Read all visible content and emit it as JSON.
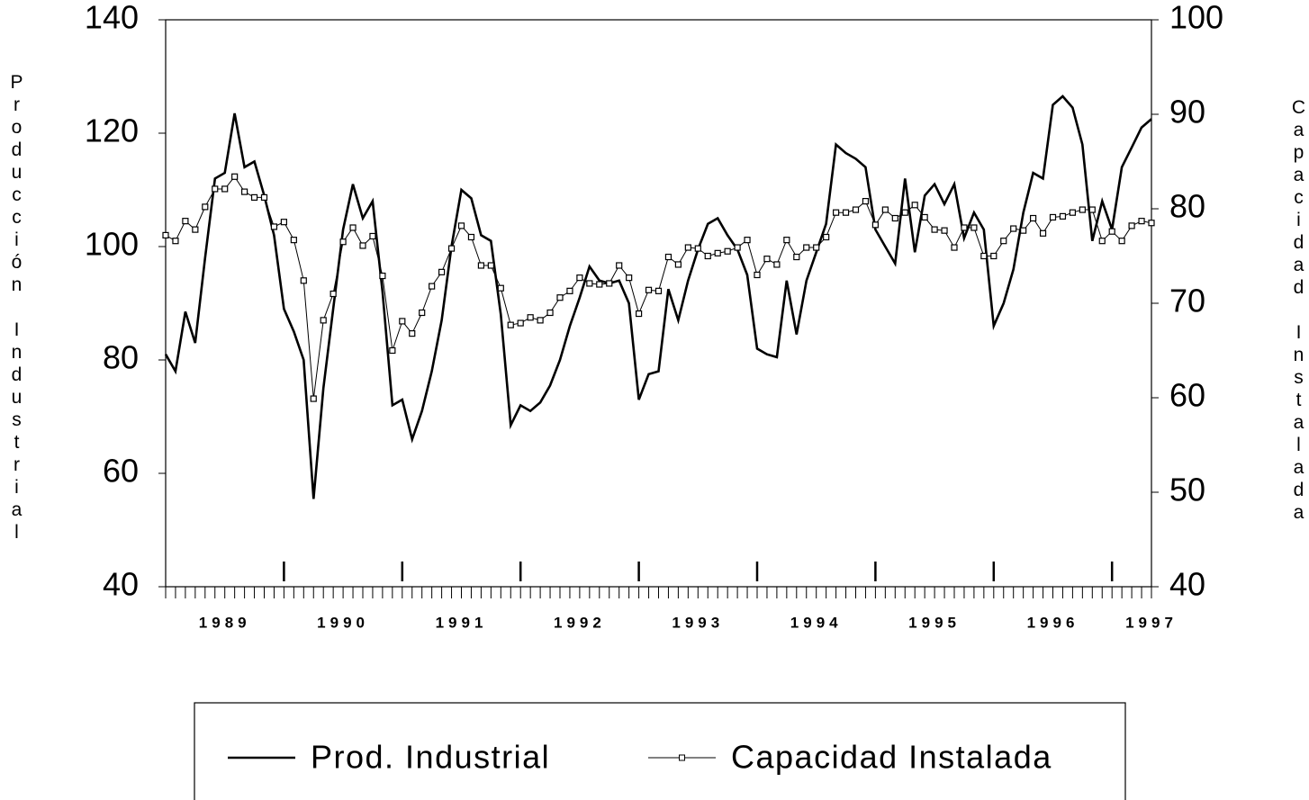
{
  "chart_data": {
    "type": "line",
    "categories": [
      null,
      null,
      null,
      null,
      null,
      null,
      "1989",
      null,
      null,
      null,
      null,
      null,
      null,
      null,
      null,
      null,
      null,
      null,
      "1990",
      null,
      null,
      null,
      null,
      null,
      null,
      null,
      null,
      null,
      null,
      null,
      "1991",
      null,
      null,
      null,
      null,
      null,
      null,
      null,
      null,
      null,
      null,
      null,
      "1992",
      null,
      null,
      null,
      null,
      null,
      null,
      null,
      null,
      null,
      null,
      null,
      "1993",
      null,
      null,
      null,
      null,
      null,
      null,
      null,
      null,
      null,
      null,
      null,
      "1994",
      null,
      null,
      null,
      null,
      null,
      null,
      null,
      null,
      null,
      null,
      null,
      "1995",
      null,
      null,
      null,
      null,
      null,
      null,
      null,
      null,
      null,
      null,
      null,
      "1996",
      null,
      null,
      null,
      null,
      null,
      null,
      null,
      null,
      null,
      "1997"
    ],
    "y_label": "Producción Industrial",
    "y2_label": "Capacidad Instalada",
    "ylim": [
      40,
      140
    ],
    "yticks": [
      40,
      60,
      80,
      100,
      120,
      140
    ],
    "y2lim": [
      40,
      100
    ],
    "y2ticks": [
      40,
      50,
      60,
      70,
      80,
      90,
      100
    ],
    "legend": "bottom",
    "series": [
      {
        "name": "Prod. Industrial",
        "color": "#000000",
        "marker": false,
        "values": [
          81,
          78,
          88.5,
          83,
          98,
          112,
          113,
          123.5,
          114,
          115,
          109,
          102,
          89,
          85,
          80,
          55.5,
          75,
          89,
          103,
          111,
          105,
          108,
          92,
          72,
          73,
          66,
          71,
          78,
          87,
          100,
          110,
          108.5,
          102,
          101,
          88,
          68.5,
          72,
          71,
          72.5,
          75.5,
          80,
          86,
          91,
          96.5,
          94,
          93.5,
          94,
          90,
          73,
          77.5,
          78,
          92.5,
          87,
          94,
          99.5,
          104,
          105,
          102,
          99.5,
          95,
          82,
          81,
          80.5,
          94,
          84.5,
          94,
          99,
          104,
          118,
          116.5,
          115.5,
          114,
          103,
          100,
          97,
          112,
          99,
          109,
          111,
          107.5,
          111,
          101.5,
          106,
          103,
          86,
          90,
          96,
          106,
          113,
          112,
          125,
          126.5,
          124.5,
          118,
          101,
          108,
          103,
          114,
          117.5,
          121,
          122.5
        ]
      },
      {
        "name": "Capacidad Instalada",
        "color": "#000000",
        "marker": true,
        "axis": "y2",
        "values": [
          77.2,
          76.6,
          78.7,
          77.8,
          80.2,
          82.1,
          82.1,
          83.4,
          81.8,
          81.2,
          81.2,
          78.1,
          78.6,
          76.7,
          72.4,
          59.9,
          68.2,
          71,
          76.5,
          78,
          76.1,
          77.1,
          72.9,
          65,
          68.1,
          66.8,
          69,
          71.8,
          73.3,
          75.8,
          78.2,
          77,
          74,
          74,
          71.6,
          67.7,
          67.9,
          68.5,
          68.2,
          69,
          70.6,
          71.3,
          72.7,
          72.1,
          72,
          72.1,
          74,
          72.7,
          68.9,
          71.4,
          71.3,
          74.9,
          74.1,
          75.9,
          75.8,
          75,
          75.3,
          75.5,
          75.9,
          76.7,
          73,
          74.7,
          74.1,
          76.7,
          74.9,
          75.9,
          75.9,
          77,
          79.6,
          79.6,
          79.9,
          80.8,
          78.3,
          79.9,
          79,
          79.6,
          80.4,
          79.1,
          77.8,
          77.7,
          75.9,
          78,
          78,
          75,
          75,
          76.6,
          77.9,
          77.7,
          79,
          77.4,
          79.1,
          79.2,
          79.6,
          79.9,
          79.9,
          76.6,
          77.6,
          76.6,
          78.2,
          78.7,
          78.5
        ]
      }
    ]
  }
}
